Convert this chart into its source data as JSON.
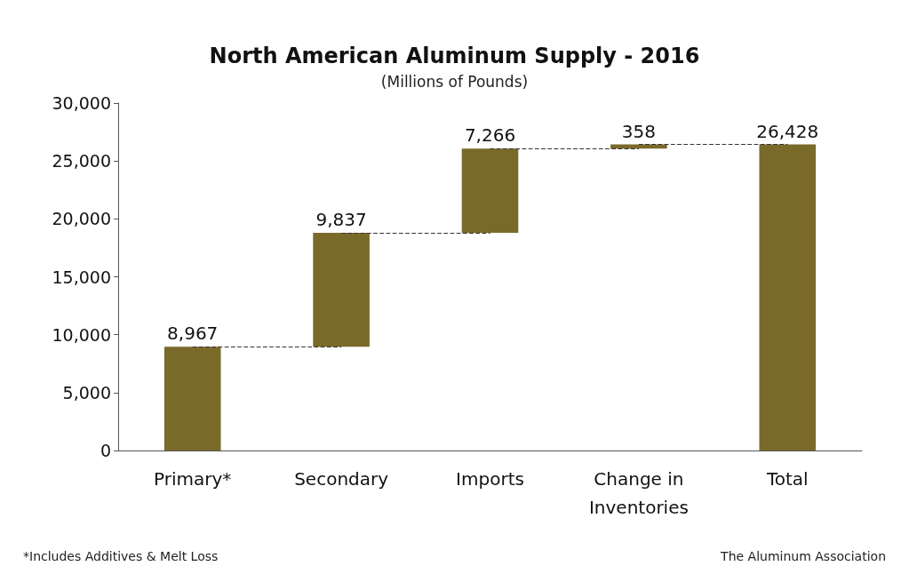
{
  "chart_data": {
    "type": "bar",
    "title": "North American Aluminum Supply - 2016",
    "subtitle": "(Millions of Pounds)",
    "categories": [
      "Primary*",
      "Secondary",
      "Imports",
      "Change in\nInventories",
      "Total"
    ],
    "values": [
      8967,
      9837,
      7266,
      358,
      26428
    ],
    "base": [
      0,
      8967,
      18804,
      26070,
      0
    ],
    "color": "#7a6a2a",
    "ylim": [
      0,
      30000
    ],
    "yticks": [
      {
        "value": 0,
        "label": "0"
      },
      {
        "value": 5000,
        "label": "5,000"
      },
      {
        "value": 10000,
        "label": "10,000"
      },
      {
        "value": 15000,
        "label": "15,000"
      },
      {
        "value": 20000,
        "label": "20,000"
      },
      {
        "value": 25000,
        "label": "25,000"
      },
      {
        "value": 30000,
        "label": "30,000"
      }
    ],
    "value_labels": [
      "8,967",
      "9,837",
      "7,266",
      "358",
      "26,428"
    ],
    "annotations": [
      "*Includes Additives & Melt Loss",
      "The Aluminum Association"
    ]
  }
}
